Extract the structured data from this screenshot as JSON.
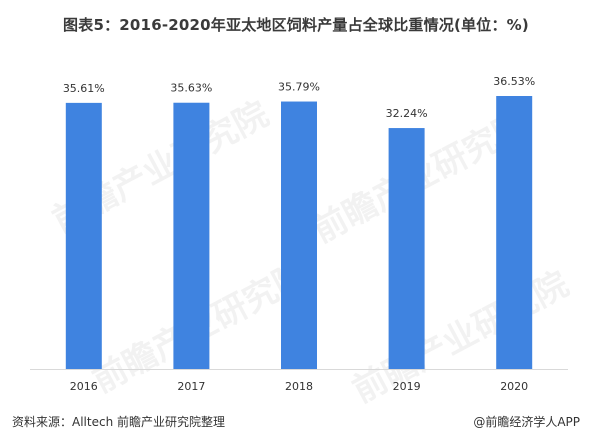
{
  "chart_data": {
    "type": "bar",
    "title": "图表5：2016-2020年亚太地区饲料产量占全球比重情况(单位：%)",
    "categories": [
      "2016",
      "2017",
      "2018",
      "2019",
      "2020"
    ],
    "values": [
      35.61,
      35.63,
      35.79,
      32.24,
      36.53
    ],
    "value_labels": [
      "35.61%",
      "35.63%",
      "35.79%",
      "32.24%",
      "36.53%"
    ],
    "xlabel": "",
    "ylabel": "",
    "ylim": [
      0,
      36.53
    ],
    "grid": false,
    "bar_color": "#3f83e0"
  },
  "footer": {
    "source": "资料来源：Alltech 前瞻产业研究院整理",
    "credit": "@前瞻经济学人APP"
  },
  "watermark": "前瞻产业研究院"
}
